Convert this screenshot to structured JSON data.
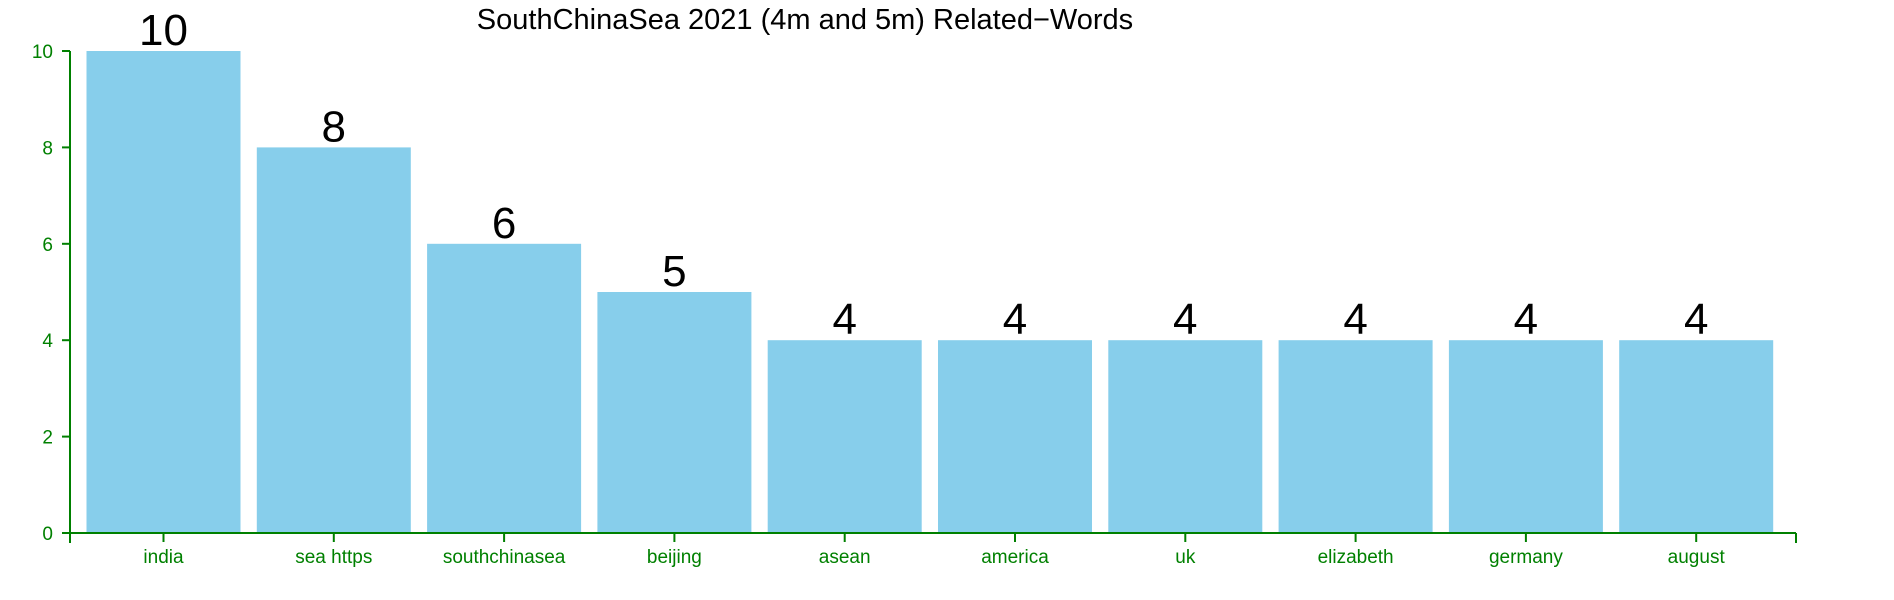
{
  "chart_data": {
    "type": "bar",
    "title": "SouthChinaSea 2021 (4m and 5m) Related−Words",
    "xlabel": "",
    "ylabel": "",
    "categories": [
      "india",
      "sea https",
      "southchinasea",
      "beijing",
      "asean",
      "america",
      "uk",
      "elizabeth",
      "germany",
      "august"
    ],
    "values": [
      10,
      8,
      6,
      5,
      4,
      4,
      4,
      4,
      4,
      4
    ],
    "value_labels": [
      "10",
      "8",
      "6",
      "5",
      "4",
      "4",
      "4",
      "4",
      "4",
      "4"
    ],
    "ylim": [
      0,
      10
    ],
    "yticks": [
      0,
      2,
      4,
      6,
      8,
      10
    ],
    "ytick_labels": [
      "0",
      "2",
      "4",
      "6",
      "8",
      "10"
    ],
    "grid": false,
    "legend": "none",
    "bar_color": "#87CEEB",
    "axis_color": "#008000",
    "label_color": "#000000"
  }
}
